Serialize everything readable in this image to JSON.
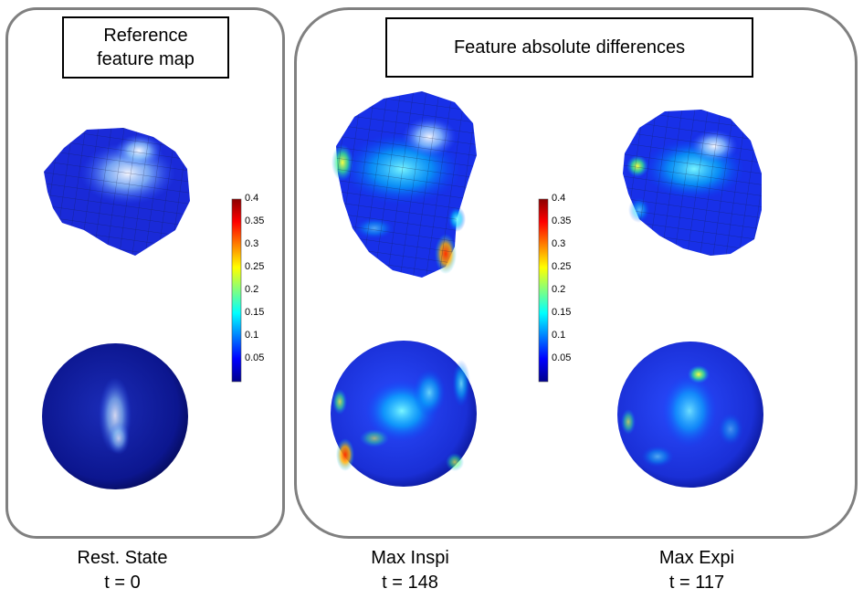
{
  "panels": {
    "reference": {
      "title_line1": "Reference",
      "title_line2": "feature map"
    },
    "differences": {
      "title": "Feature absolute differences"
    }
  },
  "colorbar": {
    "ticks": [
      "0.4",
      "0.35",
      "0.3",
      "0.25",
      "0.2",
      "0.15",
      "0.1",
      "0.05"
    ],
    "colors": [
      "#8b0000",
      "#ff0000",
      "#ff8000",
      "#ffff00",
      "#80ff80",
      "#00ffff",
      "#0080ff",
      "#0000ff",
      "#00008b"
    ]
  },
  "columns": [
    {
      "state": "Rest. State",
      "time": "t = 0"
    },
    {
      "state": "Max Inspi",
      "time": "t = 148"
    },
    {
      "state": "Max Expi",
      "time": "t = 117"
    }
  ]
}
